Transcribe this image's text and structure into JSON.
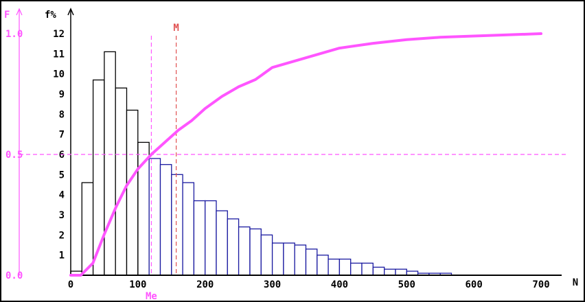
{
  "chart_data": {
    "type": "bar",
    "x_label": "N",
    "y_left_label": "F",
    "y_right_label": "f%",
    "x_ticks": [
      "0",
      "100",
      "200",
      "300",
      "400",
      "500",
      "600",
      "700"
    ],
    "x_tick_values": [
      0,
      100,
      200,
      300,
      400,
      500,
      600,
      700
    ],
    "left_ticks": [
      "0.0",
      "0.5",
      "1.0"
    ],
    "left_tick_values": [
      0,
      0.5,
      1.0
    ],
    "right_ticks": [
      "1",
      "2",
      "3",
      "4",
      "5",
      "6",
      "7",
      "8",
      "9",
      "10",
      "11",
      "12"
    ],
    "right_tick_values": [
      1,
      2,
      3,
      4,
      5,
      6,
      7,
      8,
      9,
      10,
      11,
      12
    ],
    "xlim": [
      0,
      725
    ],
    "f_ylim": [
      0,
      12.8
    ],
    "F_ylim": [
      0,
      1.067
    ],
    "bin_width": 16.67,
    "bins": [
      {
        "x0": 0,
        "f": 0.2
      },
      {
        "x0": 16.67,
        "f": 4.6
      },
      {
        "x0": 33.33,
        "f": 9.7
      },
      {
        "x0": 50,
        "f": 11.1
      },
      {
        "x0": 66.67,
        "f": 9.3
      },
      {
        "x0": 83.33,
        "f": 8.2
      },
      {
        "x0": 100,
        "f": 6.6
      },
      {
        "x0": 116.67,
        "f": 5.8
      },
      {
        "x0": 133.33,
        "f": 5.5
      },
      {
        "x0": 150,
        "f": 5.0
      },
      {
        "x0": 166.67,
        "f": 4.6
      },
      {
        "x0": 183.33,
        "f": 3.7
      },
      {
        "x0": 200,
        "f": 3.7
      },
      {
        "x0": 216.67,
        "f": 3.2
      },
      {
        "x0": 233.33,
        "f": 2.8
      },
      {
        "x0": 250,
        "f": 2.4
      },
      {
        "x0": 266.67,
        "f": 2.3
      },
      {
        "x0": 283.33,
        "f": 2.0
      },
      {
        "x0": 300,
        "f": 1.6
      },
      {
        "x0": 316.67,
        "f": 1.6
      },
      {
        "x0": 333.33,
        "f": 1.5
      },
      {
        "x0": 350,
        "f": 1.3
      },
      {
        "x0": 366.67,
        "f": 1.0
      },
      {
        "x0": 383.33,
        "f": 0.8
      },
      {
        "x0": 400,
        "f": 0.8
      },
      {
        "x0": 416.67,
        "f": 0.6
      },
      {
        "x0": 433.33,
        "f": 0.6
      },
      {
        "x0": 450,
        "f": 0.4
      },
      {
        "x0": 466.67,
        "f": 0.3
      },
      {
        "x0": 483.33,
        "f": 0.3
      },
      {
        "x0": 500,
        "f": 0.2
      },
      {
        "x0": 516.67,
        "f": 0.1
      },
      {
        "x0": 533.33,
        "f": 0.1
      },
      {
        "x0": 550,
        "f": 0.1
      }
    ],
    "cumulative_F": [
      {
        "x": 0,
        "y": 0.0
      },
      {
        "x": 15,
        "y": 0.0
      },
      {
        "x": 33,
        "y": 0.05
      },
      {
        "x": 50,
        "y": 0.17
      },
      {
        "x": 67,
        "y": 0.28
      },
      {
        "x": 83,
        "y": 0.37
      },
      {
        "x": 100,
        "y": 0.44
      },
      {
        "x": 120,
        "y": 0.5
      },
      {
        "x": 140,
        "y": 0.55
      },
      {
        "x": 160,
        "y": 0.6
      },
      {
        "x": 180,
        "y": 0.64
      },
      {
        "x": 200,
        "y": 0.69
      },
      {
        "x": 225,
        "y": 0.74
      },
      {
        "x": 250,
        "y": 0.78
      },
      {
        "x": 275,
        "y": 0.81
      },
      {
        "x": 300,
        "y": 0.86
      },
      {
        "x": 350,
        "y": 0.9
      },
      {
        "x": 400,
        "y": 0.94
      },
      {
        "x": 450,
        "y": 0.96
      },
      {
        "x": 500,
        "y": 0.975
      },
      {
        "x": 550,
        "y": 0.985
      },
      {
        "x": 600,
        "y": 0.99
      },
      {
        "x": 650,
        "y": 0.995
      },
      {
        "x": 700,
        "y": 1.0
      }
    ],
    "median": {
      "label": "Me",
      "x": 120
    },
    "mean": {
      "label": "M",
      "x": 157
    },
    "reference_F": 0.5,
    "colors": {
      "cumulative": "#ff55ff",
      "mean": "#e05050",
      "bars_below_median": "#000000",
      "bars_above_median": "#1a1aa0",
      "axis": "#000000"
    },
    "grid": false
  }
}
